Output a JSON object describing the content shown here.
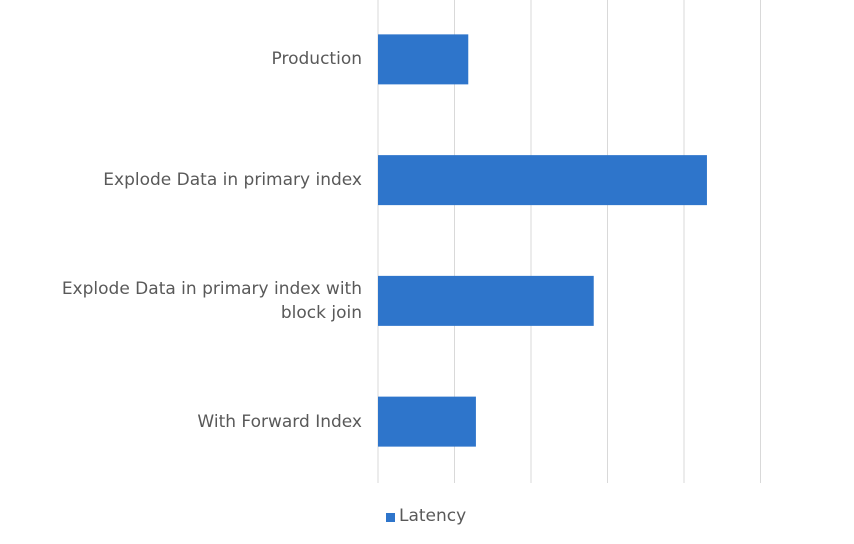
{
  "chart_data": {
    "type": "bar",
    "orientation": "horizontal",
    "categories": [
      "Production",
      "Explode Data in primary index",
      "Explode Data in primary index with block join",
      "With Forward Index"
    ],
    "series": [
      {
        "name": "Latency",
        "values": [
          1.18,
          4.3,
          2.82,
          1.28
        ],
        "color": "#2E75CB"
      }
    ],
    "xlim": [
      0,
      5
    ],
    "x_tick_step": 1,
    "x_tick_labels_visible": false,
    "grid": true,
    "legend_position": "bottom",
    "title": "",
    "xlabel": "",
    "ylabel": ""
  }
}
